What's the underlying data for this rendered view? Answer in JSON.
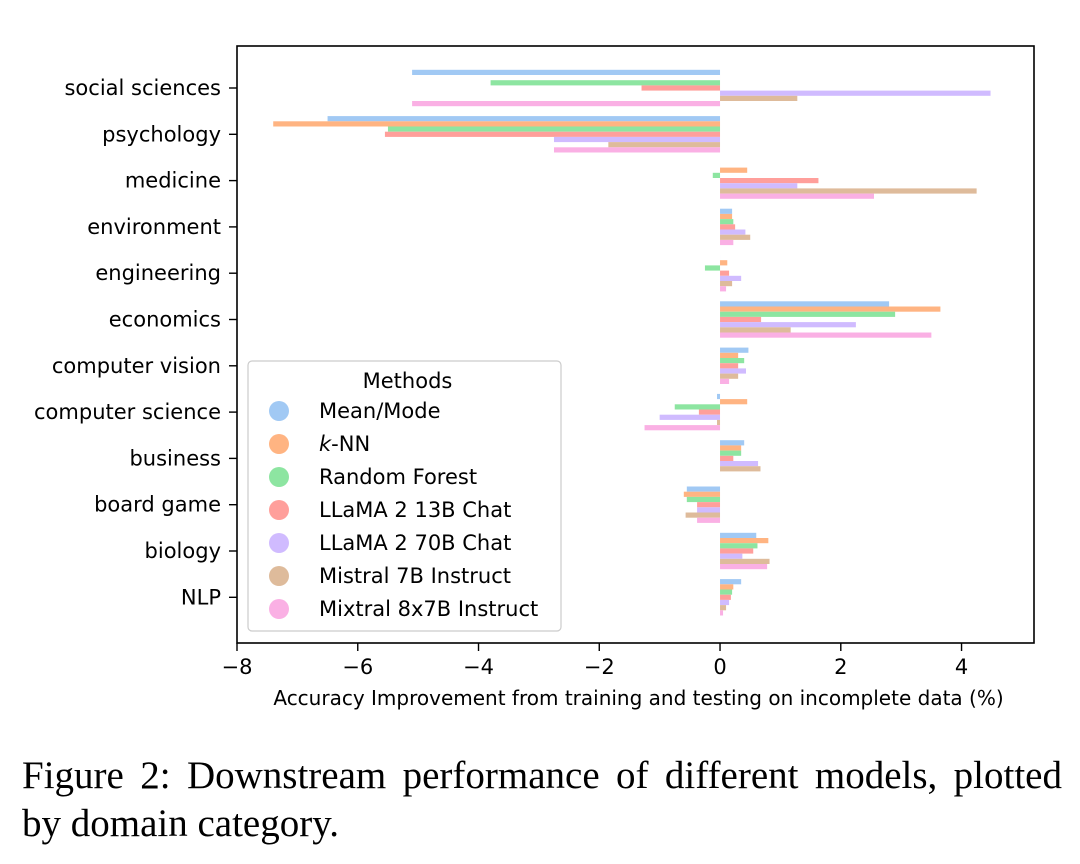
{
  "caption": "Figure 2: Downstream performance of different models, plotted by domain category.",
  "chart_data": {
    "type": "bar",
    "orientation": "horizontal",
    "xlabel": "Accuracy Improvement from training and testing on incomplete data (%)",
    "ylabel": "",
    "xlim": [
      -8,
      5.2
    ],
    "xticks": [
      -8,
      -6,
      -4,
      -2,
      0,
      2,
      4
    ],
    "xtick_labels": [
      "−8",
      "−6",
      "−4",
      "−2",
      "0",
      "2",
      "4"
    ],
    "grid": false,
    "legend": {
      "title": "Methods",
      "placement": "lower-left"
    },
    "categories": [
      "social sciences",
      "psychology",
      "medicine",
      "environment",
      "engineering",
      "economics",
      "computer vision",
      "computer science",
      "business",
      "board game",
      "biology",
      "NLP"
    ],
    "series": [
      {
        "name": "Mean/Mode",
        "color": "#a1c9f4",
        "values": [
          -5.1,
          -6.5,
          0.0,
          0.2,
          0.0,
          2.8,
          0.47,
          -0.05,
          0.4,
          -0.55,
          0.6,
          0.35
        ]
      },
      {
        "name": "k-NN",
        "name_parts": [
          "k",
          "-NN"
        ],
        "color": "#ffb482",
        "values": [
          0.0,
          -7.4,
          0.45,
          0.2,
          0.12,
          3.65,
          0.3,
          0.45,
          0.35,
          -0.6,
          0.8,
          0.22
        ]
      },
      {
        "name": "Random Forest",
        "color": "#8de5a1",
        "values": [
          -3.8,
          -5.5,
          -0.12,
          0.22,
          -0.25,
          2.9,
          0.4,
          -0.75,
          0.35,
          -0.55,
          0.62,
          0.2
        ]
      },
      {
        "name": "LLaMA 2 13B Chat",
        "color": "#ff9f9b",
        "values": [
          -1.3,
          -5.55,
          1.63,
          0.25,
          0.15,
          0.68,
          0.3,
          -0.35,
          0.22,
          -0.38,
          0.55,
          0.18
        ]
      },
      {
        "name": "LLaMA 2 70B Chat",
        "color": "#d0bbff",
        "values": [
          4.48,
          -2.75,
          1.28,
          0.42,
          0.35,
          2.25,
          0.43,
          -1.0,
          0.63,
          -0.38,
          0.37,
          0.15
        ]
      },
      {
        "name": "Mistral 7B Instruct",
        "color": "#debb9b",
        "values": [
          1.28,
          -1.85,
          4.25,
          0.5,
          0.2,
          1.17,
          0.3,
          -0.05,
          0.67,
          -0.57,
          0.82,
          0.1
        ]
      },
      {
        "name": "Mixtral 8x7B Instruct",
        "color": "#fab0e4",
        "values": [
          -5.1,
          -2.75,
          2.55,
          0.22,
          0.1,
          3.5,
          0.15,
          -1.25,
          0.0,
          -0.38,
          0.78,
          0.05
        ]
      }
    ]
  }
}
